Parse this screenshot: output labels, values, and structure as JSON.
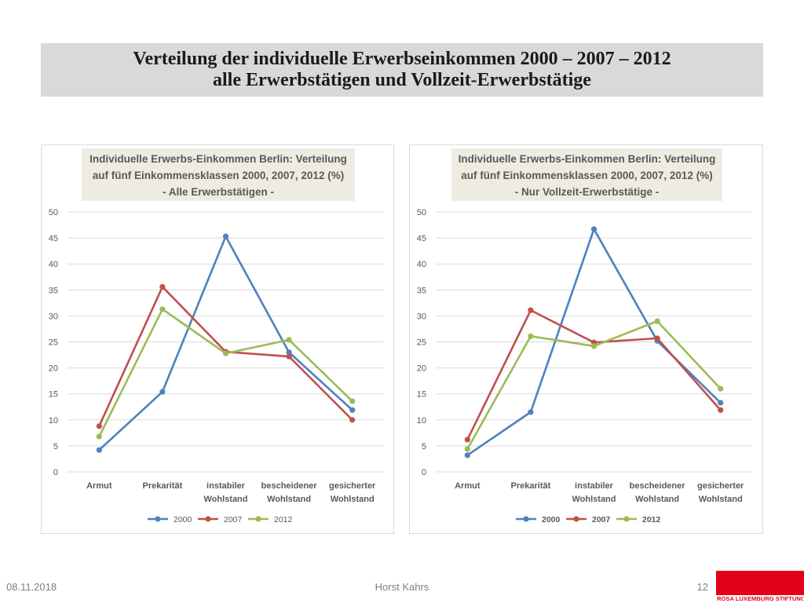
{
  "slide": {
    "title": {
      "line1": "Verteilung der individuelle Erwerbseinkommen 2000 – 2007 – 2012",
      "line2": "alle Erwerbstätigen und Vollzeit-Erwerbstätige"
    },
    "footer": {
      "date": "08.11.2018",
      "author": "Horst Kahrs",
      "page_number": "12"
    },
    "logo": {
      "text": "ROSA LUXEMBURG STIFTUNG"
    }
  },
  "colors": {
    "title_banner_bg": "#d9d9d9",
    "chart_title_bg": "#eeece1",
    "gridline": "#d9d9d9",
    "axis_text": "#595959",
    "footer_text": "#7f7f7f",
    "logo": "#e2001a"
  },
  "chart_data": [
    {
      "type": "line",
      "title_lines": [
        "Individuelle Erwerbs-Einkommen Berlin: Verteilung",
        "auf fünf Einkommensklassen 2000, 2007, 2012 (%)",
        "- Alle Erwerbstätigen -"
      ],
      "categories": [
        [
          "Armut"
        ],
        [
          "Prekarität"
        ],
        [
          "instabiler",
          "Wohlstand"
        ],
        [
          "bescheidener",
          "Wohlstand"
        ],
        [
          "gesicherter",
          "Wohlstand"
        ]
      ],
      "ylim": [
        0,
        50
      ],
      "yticks": [
        0,
        5,
        10,
        15,
        20,
        25,
        30,
        35,
        40,
        45,
        50
      ],
      "grid": true,
      "legend": "bottom",
      "series": [
        {
          "name": "2000",
          "color": "#4f81bd",
          "values": [
            4.2,
            15.4,
            45.3,
            23.0,
            11.9
          ]
        },
        {
          "name": "2007",
          "color": "#c0504d",
          "values": [
            8.8,
            35.6,
            23.1,
            22.2,
            10.0
          ]
        },
        {
          "name": "2012",
          "color": "#9bbb59",
          "values": [
            6.8,
            31.3,
            22.8,
            25.4,
            13.6
          ]
        }
      ]
    },
    {
      "type": "line",
      "title_lines": [
        "Individuelle Erwerbs-Einkommen Berlin: Verteilung",
        "auf fünf Einkommensklassen 2000, 2007, 2012 (%)",
        "- Nur Vollzeit-Erwerbstätige -"
      ],
      "categories": [
        [
          "Armut"
        ],
        [
          "Prekarität"
        ],
        [
          "instabiler",
          "Wohlstand"
        ],
        [
          "bescheidener",
          "Wohlstand"
        ],
        [
          "gesicherter",
          "Wohlstand"
        ]
      ],
      "ylim": [
        0,
        50
      ],
      "yticks": [
        0,
        5,
        10,
        15,
        20,
        25,
        30,
        35,
        40,
        45,
        50
      ],
      "grid": true,
      "legend": "bottom",
      "series": [
        {
          "name": "2000",
          "color": "#4f81bd",
          "values": [
            3.2,
            11.5,
            46.7,
            25.2,
            13.3
          ]
        },
        {
          "name": "2007",
          "color": "#c0504d",
          "values": [
            6.2,
            31.1,
            24.9,
            25.7,
            11.9
          ]
        },
        {
          "name": "2012",
          "color": "#9bbb59",
          "values": [
            4.4,
            26.1,
            24.2,
            29.0,
            16.0
          ]
        }
      ]
    }
  ]
}
